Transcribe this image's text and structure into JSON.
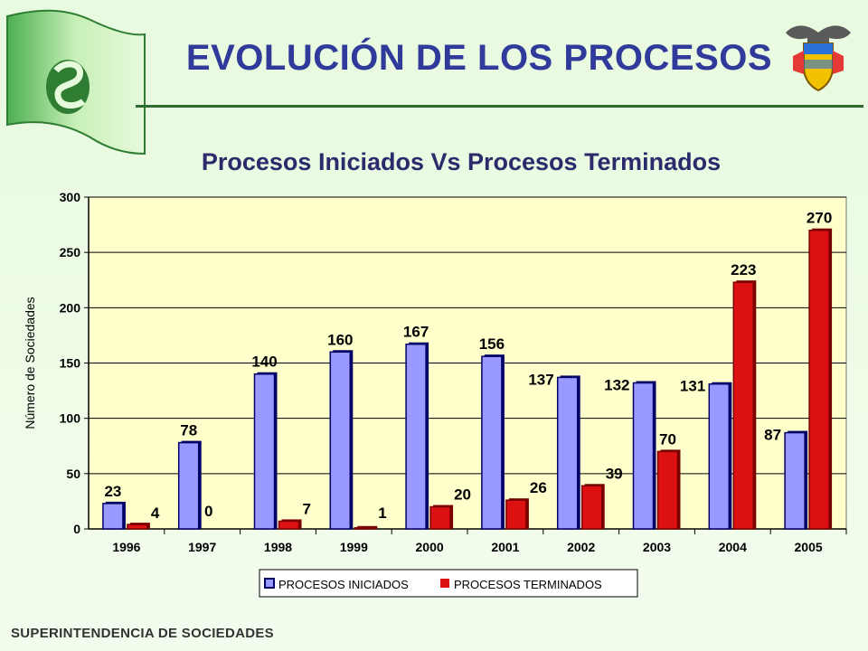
{
  "header": {
    "title": "EVOLUCIÓN DE LOS PROCESOS",
    "subtitle": "Procesos Iniciados Vs Procesos Terminados",
    "logo_icon": "supersociedades-logo-icon",
    "crest_icon": "colombia-coat-of-arms-icon"
  },
  "footer": {
    "text": "SUPERINTENDENCIA DE SOCIEDADES"
  },
  "colors": {
    "iniciados": "#9999ff",
    "terminados": "#dd1111",
    "plot_bg": "#ffffcc",
    "title": "#2f3a9a"
  },
  "chart_data": {
    "type": "bar",
    "title": "Procesos Iniciados Vs Procesos Terminados",
    "xlabel": "",
    "ylabel": "Número de Sociedades",
    "ylim": [
      0,
      300
    ],
    "yticks": [
      0,
      50,
      100,
      150,
      200,
      250,
      300
    ],
    "grid": true,
    "legend_position": "bottom",
    "categories": [
      "1996",
      "1997",
      "1998",
      "1999",
      "2000",
      "2001",
      "2002",
      "2003",
      "2004",
      "2005"
    ],
    "series": [
      {
        "name": "PROCESOS INICIADOS",
        "values": [
          23,
          78,
          140,
          160,
          167,
          156,
          137,
          132,
          131,
          87
        ]
      },
      {
        "name": "PROCESOS TERMINADOS",
        "values": [
          4,
          0,
          7,
          1,
          20,
          26,
          39,
          70,
          223,
          270
        ]
      }
    ]
  }
}
